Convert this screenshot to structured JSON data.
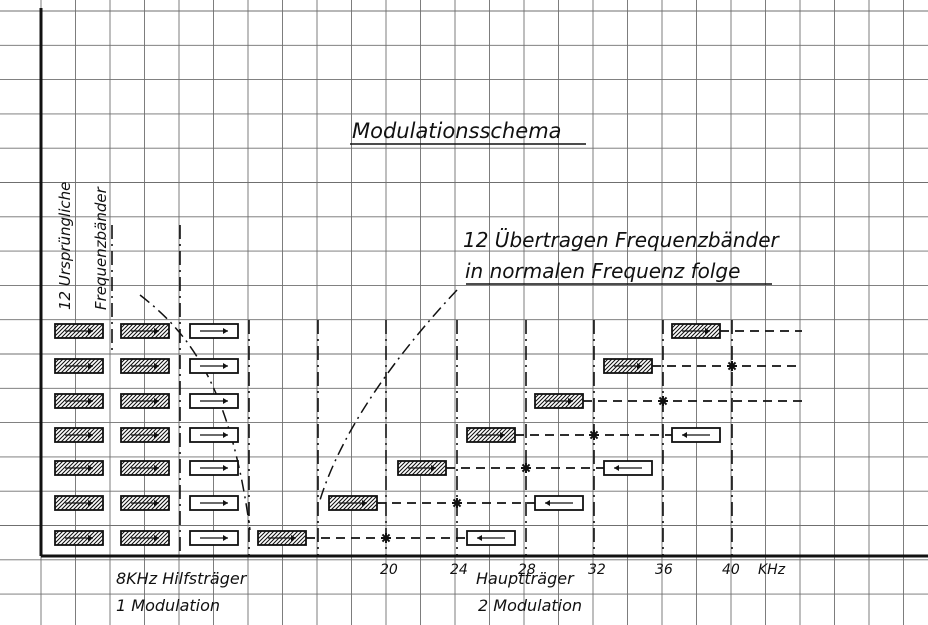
{
  "title": "Modulationsschema",
  "vertical_label": [
    "12 Ursprüngliche",
    "Frequenzbänder"
  ],
  "transmitted_label": [
    "12 Übertragen Frequenzbänder",
    "in normalen Frequenz folge"
  ],
  "axis_unit": "KHz",
  "axis_ticks": [
    "20",
    "24",
    "28",
    "32",
    "36",
    "40"
  ],
  "bottom_left_labels": [
    "8KHz Hilfsträger",
    "1 Modulation"
  ],
  "bottom_right_labels": [
    "Hauptträger",
    "2 Modulation"
  ],
  "colors": {
    "ink": "#111111",
    "grid": "#6f6f6f",
    "paper": "#ffffff"
  }
}
